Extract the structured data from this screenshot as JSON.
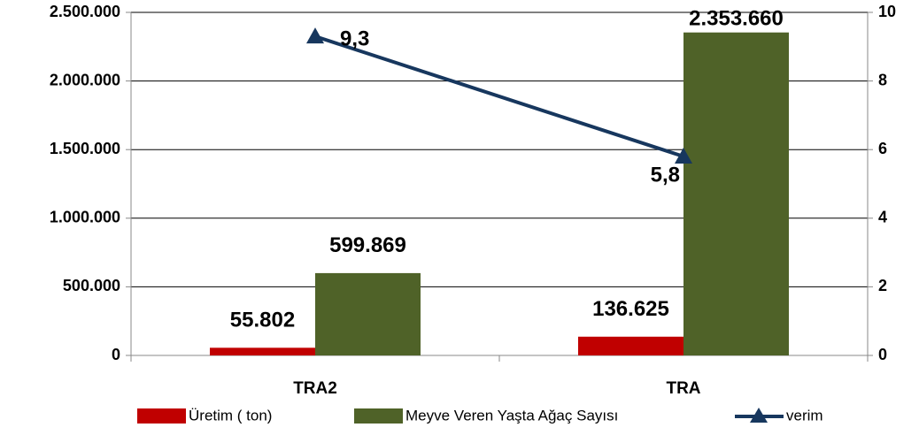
{
  "chart_data": {
    "type": "bar",
    "categories": [
      "TRA2",
      "TRA"
    ],
    "series": [
      {
        "name": "Üretim ( ton)",
        "color": "#c00000",
        "values": [
          55802,
          136625
        ],
        "value_labels": [
          "55.802",
          "136.625"
        ]
      },
      {
        "name": "Meyve Veren Yaşta Ağaç Sayısı",
        "color": "#4f6228",
        "values": [
          599869,
          2353660
        ],
        "value_labels": [
          "599.869",
          "2.353.660"
        ]
      },
      {
        "name": "verim",
        "type": "line",
        "axis": "y2",
        "color": "#17375e",
        "values": [
          9.3,
          5.8
        ],
        "value_labels": [
          "9,3",
          "5,8"
        ]
      }
    ],
    "ylim": [
      0,
      2500000
    ],
    "yticks": [
      {
        "value": 0,
        "label": "0"
      },
      {
        "value": 500000,
        "label": "500.000"
      },
      {
        "value": 1000000,
        "label": "1.000.000"
      },
      {
        "value": 1500000,
        "label": "1.500.000"
      },
      {
        "value": 2000000,
        "label": "2.000.000"
      },
      {
        "value": 2500000,
        "label": "2.500.000"
      }
    ],
    "y2lim": [
      0,
      10
    ],
    "y2ticks": [
      0,
      2,
      4,
      6,
      8,
      10
    ],
    "grid": true,
    "legend": "bottom"
  }
}
